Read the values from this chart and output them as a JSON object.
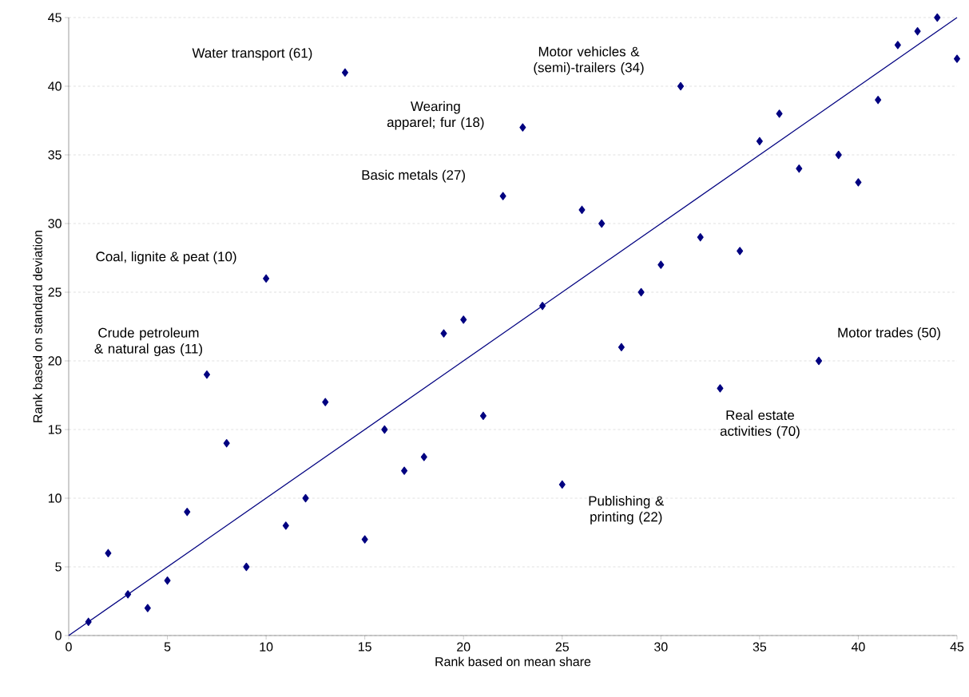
{
  "chart_data": {
    "type": "scatter",
    "xlabel": "Rank based on mean share",
    "ylabel": "Rank based on standard deviation",
    "xlim": [
      0,
      45
    ],
    "ylim": [
      0,
      45
    ],
    "xticks": [
      0,
      5,
      10,
      15,
      20,
      25,
      30,
      35,
      40,
      45
    ],
    "yticks": [
      0,
      5,
      10,
      15,
      20,
      25,
      30,
      35,
      40,
      45
    ],
    "grid": "y",
    "marker": "diamond",
    "series": [
      {
        "type": "scatter",
        "color": "#000080",
        "x": [
          1,
          2,
          3,
          4,
          5,
          6,
          7,
          8,
          9,
          10,
          11,
          12,
          13,
          14,
          15,
          16,
          17,
          18,
          19,
          20,
          21,
          22,
          23,
          24,
          25,
          26,
          27,
          28,
          29,
          30,
          31,
          32,
          33,
          34,
          35,
          36,
          37,
          38,
          39,
          40,
          41,
          42,
          43,
          44,
          45
        ],
        "values": [
          1,
          6,
          3,
          2,
          4,
          9,
          19,
          14,
          5,
          26,
          8,
          10,
          17,
          41,
          7,
          15,
          12,
          13,
          22,
          23,
          16,
          32,
          37,
          24,
          11,
          31,
          30,
          21,
          25,
          27,
          40,
          29,
          18,
          28,
          36,
          38,
          34,
          20,
          35,
          33,
          39,
          43,
          44,
          45,
          42
        ]
      },
      {
        "type": "line",
        "color": "#000080",
        "marker": "none",
        "x": [
          0,
          45
        ],
        "values": [
          0,
          45
        ]
      }
    ],
    "annotations": [
      {
        "text": "Water transport (61)",
        "x": 14,
        "y": 41
      },
      {
        "text": "Motor vehicles & (semi)-trailers (34)",
        "x": 31,
        "y": 40
      },
      {
        "text": "Wearing apparel; fur (18)",
        "x": 23,
        "y": 37
      },
      {
        "text": "Basic metals (27)",
        "x": 22,
        "y": 32
      },
      {
        "text": "Coal, lignite & peat (10)",
        "x": 10,
        "y": 26
      },
      {
        "text": "Crude petroleum & natural gas (11)",
        "x": 7,
        "y": 19
      },
      {
        "text": "Publishing & printing (22)",
        "x": 25,
        "y": 11
      },
      {
        "text": "Real estate activities (70)",
        "x": 33,
        "y": 18
      },
      {
        "text": "Motor trades (50)",
        "x": 38,
        "y": 20
      }
    ]
  }
}
